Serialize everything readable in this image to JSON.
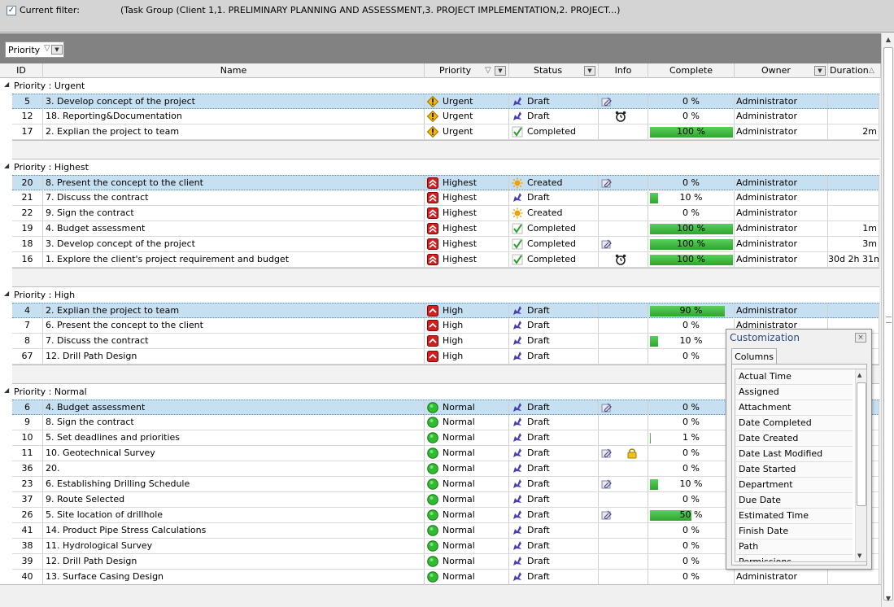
{
  "filter": {
    "checkbox": "✓",
    "label": "Current filter:",
    "value": "(Task Group  (Client 1,1. PRELIMINARY PLANNING AND ASSESSMENT,3. PROJECT IMPLEMENTATION,2. PROJECT...)"
  },
  "groupChip": {
    "label": "Priority"
  },
  "columns": [
    "ID",
    "Name",
    "Priority",
    "Status",
    "Info",
    "Complete",
    "Owner",
    "Duration"
  ],
  "colors": {
    "selected_row": "#c6e0f2",
    "progress": "#3cb43c",
    "urgent": "#f5b800",
    "highest": "#d22020",
    "normal": "#2ebd2e",
    "draft": "#4a3fb0",
    "created": "#f0a000"
  },
  "groups": [
    {
      "label": "Priority : Urgent",
      "rows": [
        {
          "id": "5",
          "name": "3. Develop concept of the project",
          "priority": "Urgent",
          "status": "Draft",
          "info": [
            "attachment"
          ],
          "complete": 0,
          "complete_label": "0 %",
          "owner": "Administrator",
          "duration": "",
          "selected": true
        },
        {
          "id": "12",
          "name": "18. Reporting&Documentation",
          "priority": "Urgent",
          "status": "Draft",
          "info": [
            "alarm"
          ],
          "complete": 0,
          "complete_label": "0 %",
          "owner": "Administrator",
          "duration": ""
        },
        {
          "id": "17",
          "name": "2. Explian the project to team",
          "priority": "Urgent",
          "status": "Completed",
          "info": [],
          "complete": 100,
          "complete_label": "100 %",
          "owner": "Administrator",
          "duration": "2m"
        }
      ]
    },
    {
      "label": "Priority : Highest",
      "rows": [
        {
          "id": "20",
          "name": "8. Present the concept to the client",
          "priority": "Highest",
          "status": "Created",
          "info": [
            "attachment"
          ],
          "complete": 0,
          "complete_label": "0 %",
          "owner": "Administrator",
          "duration": "",
          "selected": true
        },
        {
          "id": "21",
          "name": "7. Discuss the contract",
          "priority": "Highest",
          "status": "Draft",
          "info": [],
          "complete": 10,
          "complete_label": "10 %",
          "owner": "Administrator",
          "duration": ""
        },
        {
          "id": "22",
          "name": "9. Sign the contract",
          "priority": "Highest",
          "status": "Created",
          "info": [],
          "complete": 0,
          "complete_label": "0 %",
          "owner": "Administrator",
          "duration": ""
        },
        {
          "id": "19",
          "name": "4. Budget assessment",
          "priority": "Highest",
          "status": "Completed",
          "info": [],
          "complete": 100,
          "complete_label": "100 %",
          "owner": "Administrator",
          "duration": "1m"
        },
        {
          "id": "18",
          "name": "3. Develop concept of the project",
          "priority": "Highest",
          "status": "Completed",
          "info": [
            "attachment"
          ],
          "complete": 100,
          "complete_label": "100 %",
          "owner": "Administrator",
          "duration": "3m"
        },
        {
          "id": "16",
          "name": "1. Explore the client's project requirement and budget",
          "priority": "Highest",
          "status": "Completed",
          "info": [
            "alarm"
          ],
          "complete": 100,
          "complete_label": "100 %",
          "owner": "Administrator",
          "duration": "30d 2h 31m"
        }
      ]
    },
    {
      "label": "Priority : High",
      "rows": [
        {
          "id": "4",
          "name": "2. Explian the project to team",
          "priority": "High",
          "status": "Draft",
          "info": [],
          "complete": 90,
          "complete_label": "90 %",
          "owner": "Administrator",
          "duration": "",
          "selected": true
        },
        {
          "id": "7",
          "name": "6. Present the concept to the client",
          "priority": "High",
          "status": "Draft",
          "info": [],
          "complete": 0,
          "complete_label": "0 %",
          "owner": "Administrator",
          "duration": ""
        },
        {
          "id": "8",
          "name": "7. Discuss the contract",
          "priority": "High",
          "status": "Draft",
          "info": [],
          "complete": 10,
          "complete_label": "10 %",
          "owner": "",
          "duration": ""
        },
        {
          "id": "67",
          "name": "12. Drill Path Design",
          "priority": "High",
          "status": "Draft",
          "info": [],
          "complete": 0,
          "complete_label": "0 %",
          "owner": "",
          "duration": ""
        }
      ]
    },
    {
      "label": "Priority : Normal",
      "rows": [
        {
          "id": "6",
          "name": "4. Budget assessment",
          "priority": "Normal",
          "status": "Draft",
          "info": [
            "attachment"
          ],
          "complete": 0,
          "complete_label": "0 %",
          "owner": "",
          "duration": "",
          "selected": true
        },
        {
          "id": "9",
          "name": "8. Sign the contract",
          "priority": "Normal",
          "status": "Draft",
          "info": [],
          "complete": 0,
          "complete_label": "0 %",
          "owner": "",
          "duration": ""
        },
        {
          "id": "10",
          "name": "5. Set deadlines and priorities",
          "priority": "Normal",
          "status": "Draft",
          "info": [],
          "complete": 1,
          "complete_label": "1 %",
          "owner": "",
          "duration": ""
        },
        {
          "id": "11",
          "name": "10. Geotechnical Survey",
          "priority": "Normal",
          "status": "Draft",
          "info": [
            "attachment",
            "lock"
          ],
          "complete": 0,
          "complete_label": "0 %",
          "owner": "",
          "duration": ""
        },
        {
          "id": "36",
          "name": "20.",
          "priority": "Normal",
          "status": "Draft",
          "info": [],
          "complete": 0,
          "complete_label": "0 %",
          "owner": "",
          "duration": ""
        },
        {
          "id": "23",
          "name": "6. Establishing Drilling Schedule",
          "priority": "Normal",
          "status": "Draft",
          "info": [
            "attachment"
          ],
          "complete": 10,
          "complete_label": "10 %",
          "owner": "",
          "duration": ""
        },
        {
          "id": "37",
          "name": "9. Route Selected",
          "priority": "Normal",
          "status": "Draft",
          "info": [],
          "complete": 0,
          "complete_label": "0 %",
          "owner": "",
          "duration": ""
        },
        {
          "id": "26",
          "name": "5. Site location of drillhole",
          "priority": "Normal",
          "status": "Draft",
          "info": [
            "attachment"
          ],
          "complete": 50,
          "complete_label": "50 %",
          "owner": "",
          "duration": ""
        },
        {
          "id": "41",
          "name": "14. Product Pipe Stress Calculations",
          "priority": "Normal",
          "status": "Draft",
          "info": [],
          "complete": 0,
          "complete_label": "0 %",
          "owner": "",
          "duration": ""
        },
        {
          "id": "38",
          "name": "11. Hydrological Survey",
          "priority": "Normal",
          "status": "Draft",
          "info": [],
          "complete": 0,
          "complete_label": "0 %",
          "owner": "",
          "duration": ""
        },
        {
          "id": "39",
          "name": "12. Drill Path Design",
          "priority": "Normal",
          "status": "Draft",
          "info": [],
          "complete": 0,
          "complete_label": "0 %",
          "owner": "",
          "duration": ""
        },
        {
          "id": "40",
          "name": "13. Surface Casing Design",
          "priority": "Normal",
          "status": "Draft",
          "info": [],
          "complete": 0,
          "complete_label": "0 %",
          "owner": "Administrator",
          "duration": ""
        }
      ]
    }
  ],
  "customization": {
    "title": "Customization",
    "close": "×",
    "tab": "Columns",
    "items": [
      "Actual Time",
      "Assigned",
      "Attachment",
      "Date Completed",
      "Date Created",
      "Date Last Modified",
      "Date Started",
      "Department",
      "Due Date",
      "Estimated Time",
      "Finish Date",
      "Path",
      "Permissions"
    ]
  }
}
